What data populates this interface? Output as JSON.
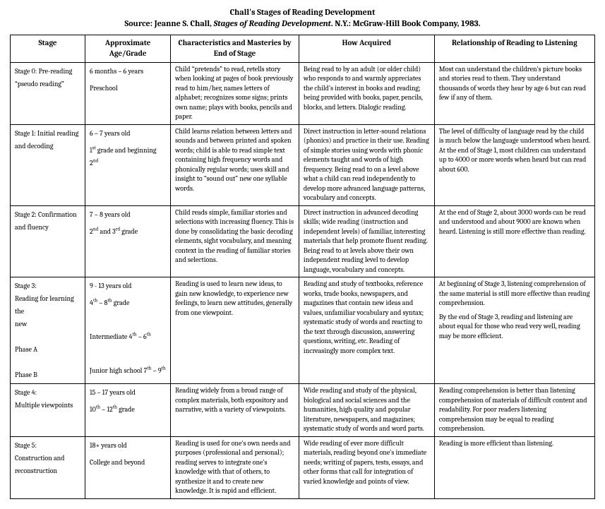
{
  "header": {
    "title": "Chall's Stages of Reading Development",
    "source_prefix": "Source: Jeanne S. Chall, ",
    "source_italic": "Stages of Reading Development",
    "source_suffix": ". N.Y.: McGraw-Hill Book Company, 1983."
  },
  "columns": {
    "stage": "Stage",
    "age": "Approximate Age/Grade",
    "char": "Characteristics and Masteries by End of Stage",
    "acq": "How Acquired",
    "rel": "Relationship of Reading to Listening"
  },
  "rows": [
    {
      "stage_lines": [
        "Stage 0: Pre-reading",
        "“pseudo reading”"
      ],
      "age_lines": [
        "6 months – 6 years",
        "Preschool"
      ],
      "char": "Child “pretends” to read, retells story when looking at pages of book previously read to him/her, names letters of alphabet; recognizes some signs; prints own name; plays with books, pencils and paper.",
      "acq": "Being read to by an adult (or older child) who responds to and warmly appreciates the child's interest in books and reading; being provided with books, paper, pencils, blocks, and letters. Dialogic reading.",
      "rel": [
        "Most can understand the children's picture books and stories read to them. They understand thousands of words they hear by age 6 but can read few if any of them."
      ]
    },
    {
      "stage_lines": [
        "Stage 1: Initial reading",
        "and decoding"
      ],
      "age_lines": [
        "6 – 7 years old",
        "1<sup>st</sup> grade and beginning 2<sup>nd</sup>"
      ],
      "char": "Child learns relation between letters and sounds and between printed and spoken words; child is able to read simple text containing high frequency words and phonically regular words; uses skill and insight to “sound out” new one syllable words.",
      "acq": "Direct instruction in letter-sound relations (phonics) and practice in their use. Reading of simple stories using words with phonic elements taught and words of high frequency. Being read to on a level above what a child can read independently to develop more advanced language patterns, vocabulary and concepts.",
      "rel": [
        "The level of difficulty of language read by the child is much below the language understood when heard. At the end of Stage 1, most children can understand up to 4000 or more words when heard but can read about 600."
      ]
    },
    {
      "stage_lines": [
        "Stage 2: Confirmation",
        "and fluency"
      ],
      "age_lines": [
        "7 – 8 years old",
        "2<sup>nd</sup> and 3<sup>rd</sup> grade"
      ],
      "char": "Child reads simple, familiar stories and selections with increasing fluency. This is done by consolidating the basic decoding elements, sight vocabulary, and meaning context in the reading of familiar stories and selections.",
      "acq": "Direct instruction in advanced decoding skills; wide reading (instruction and independent levels) of familiar, interesting materials that help promote fluent reading. Being read to at levels above their own independent reading level to develop language, vocabulary and concepts.",
      "rel": [
        "At the end of Stage 2, about 3000 words can be read and understood and about 9000 are known when heard. Listening is still more effective than reading."
      ]
    },
    {
      "stage_lines": [
        "Stage 3:",
        "Reading for learning the",
        "new",
        "",
        "Phase A",
        "",
        "Phase B"
      ],
      "age_lines": [
        "9 - 13 years old",
        "4<sup>th</sup> – 8<sup>th</sup> grade",
        "",
        "Intermediate 4<sup>th</sup> – 6<sup>th</sup>",
        "",
        "Junior high school 7<sup>th</sup> – 9<sup>th</sup>"
      ],
      "char": "Reading is used to learn new ideas, to gain new knowledge, to experience new feelings, to learn new attitudes, generally from one viewpoint.",
      "acq": "Reading and study of textbooks, reference works, trade books, newspapers, and magazines that contain new ideas and values, unfamiliar vocabulary and syntax; systematic study of words and reacting to the text through discussion, answering questions, writing, etc. Reading of increasingly more complex text.",
      "rel": [
        "At beginning of Stage 3, listening comprehension of the same material is still more effective than reading comprehension.",
        "By the end of Stage 3, reading and listening are about equal for those who read very well, reading may be more efficient."
      ]
    },
    {
      "stage_lines": [
        "Stage 4:",
        "Multiple viewpoints"
      ],
      "age_lines": [
        "15 – 17 years old",
        "10<sup>th</sup> – 12<sup>th</sup> grade"
      ],
      "char": "Reading widely from a broad range of complex materials, both expository and narrative, with a variety of viewpoints.",
      "acq": "Wide reading and study of the physical, biological and social sciences and the humanities, high quality and popular literature, newspapers, and magazines; systematic study of words and word parts.",
      "rel": [
        "Reading comprehension is better than listening comprehension of materials of difficult content and readability. For poor readers listening comprehension may be equal to reading comprehension."
      ]
    },
    {
      "stage_lines": [
        "Stage 5:",
        "Construction and",
        "reconstruction"
      ],
      "age_lines": [
        "18+ years old",
        "College and beyond"
      ],
      "char": "Reading is used for one's own needs and purposes (professional and personal); reading serves to integrate one's knowledge with that of others, to synthesize it and to create new knowledge. It is rapid and efficient.",
      "acq": "Wide reading of ever more difficult materials, reading beyond one's immediate needs; writing of papers, tests, essays, and other forms that call for integration of varied knowledge and points of view.",
      "rel": [
        "Reading is more efficient than listening."
      ]
    }
  ]
}
